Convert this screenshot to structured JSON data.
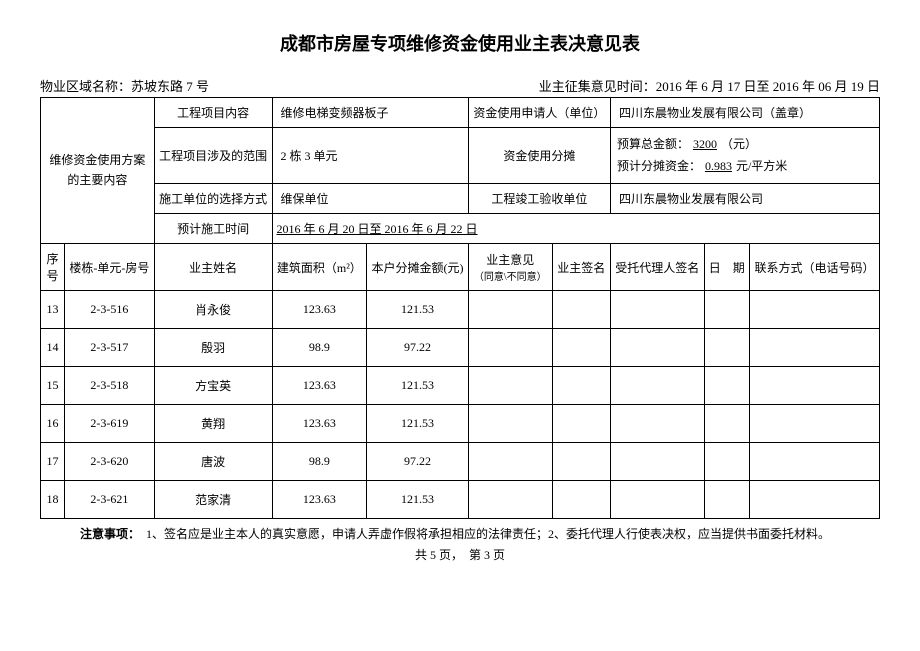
{
  "title": "成都市房屋专项维修资金使用业主表决意见表",
  "header": {
    "area_label": "物业区域名称：",
    "area_value": "苏坡东路 7 号",
    "time_label": "业主征集意见时间：",
    "time_value": "2016 年 6 月 17 日至 2016 年 06 月 19 日"
  },
  "main": {
    "side_label": "维修资金使用方案的主要内容",
    "r1c1_label": "工程项目内容",
    "r1c2_value": "维修电梯变频器板子",
    "r1c3_label": "资金使用申请人（单位）",
    "r1c4_value": "四川东晨物业发展有限公司（盖章）",
    "r2c1_label": "工程项目涉及的范围",
    "r2c2_value": "2 栋 3 单元",
    "r2c3_label": "资金使用分摊",
    "budget_label": "预算总金额：",
    "budget_value": "3200",
    "budget_unit": "（元）",
    "share_label": "预计分摊资金：",
    "share_value": "0.983",
    "share_unit": "元/平方米",
    "r3c1_label": "施工单位的选择方式",
    "r3c2_value": "维保单位",
    "r3c3_label": "工程竣工验收单位",
    "r3c4_value": "四川东晨物业发展有限公司",
    "r4c1_label": "预计施工时间",
    "r4c2_value": "2016 年 6 月 20 日至 2016 年 6 月 22 日"
  },
  "columns": {
    "seq": "序号",
    "unit": "楼栋-单元-房号",
    "owner": "业主姓名",
    "area": "建筑面积（m²）",
    "amount": "本户分摊金额(元)",
    "opinion": "业主意见",
    "opinion_sub": "（同意\\不同意）",
    "sign": "业主签名",
    "agent": "受托代理人签名",
    "date": "日　期",
    "phone": "联系方式（电话号码）"
  },
  "rows": [
    {
      "seq": "13",
      "unit": "2-3-516",
      "owner": "肖永俊",
      "area": "123.63",
      "amount": "121.53"
    },
    {
      "seq": "14",
      "unit": "2-3-517",
      "owner": "殷羽",
      "area": "98.9",
      "amount": "97.22"
    },
    {
      "seq": "15",
      "unit": "2-3-518",
      "owner": "方宝英",
      "area": "123.63",
      "amount": "121.53"
    },
    {
      "seq": "16",
      "unit": "2-3-619",
      "owner": "黄翔",
      "area": "123.63",
      "amount": "121.53"
    },
    {
      "seq": "17",
      "unit": "2-3-620",
      "owner": "唐波",
      "area": "98.9",
      "amount": "97.22"
    },
    {
      "seq": "18",
      "unit": "2-3-621",
      "owner": "范家清",
      "area": "123.63",
      "amount": "121.53"
    }
  ],
  "footer": {
    "note_label": "注意事项：",
    "note_text": "　1、签名应是业主本人的真实意愿，申请人弄虚作假将承担相应的法律责任；2、委托代理人行使表决权，应当提供书面委托材料。",
    "pager": "共 5 页，　第 3 页"
  }
}
